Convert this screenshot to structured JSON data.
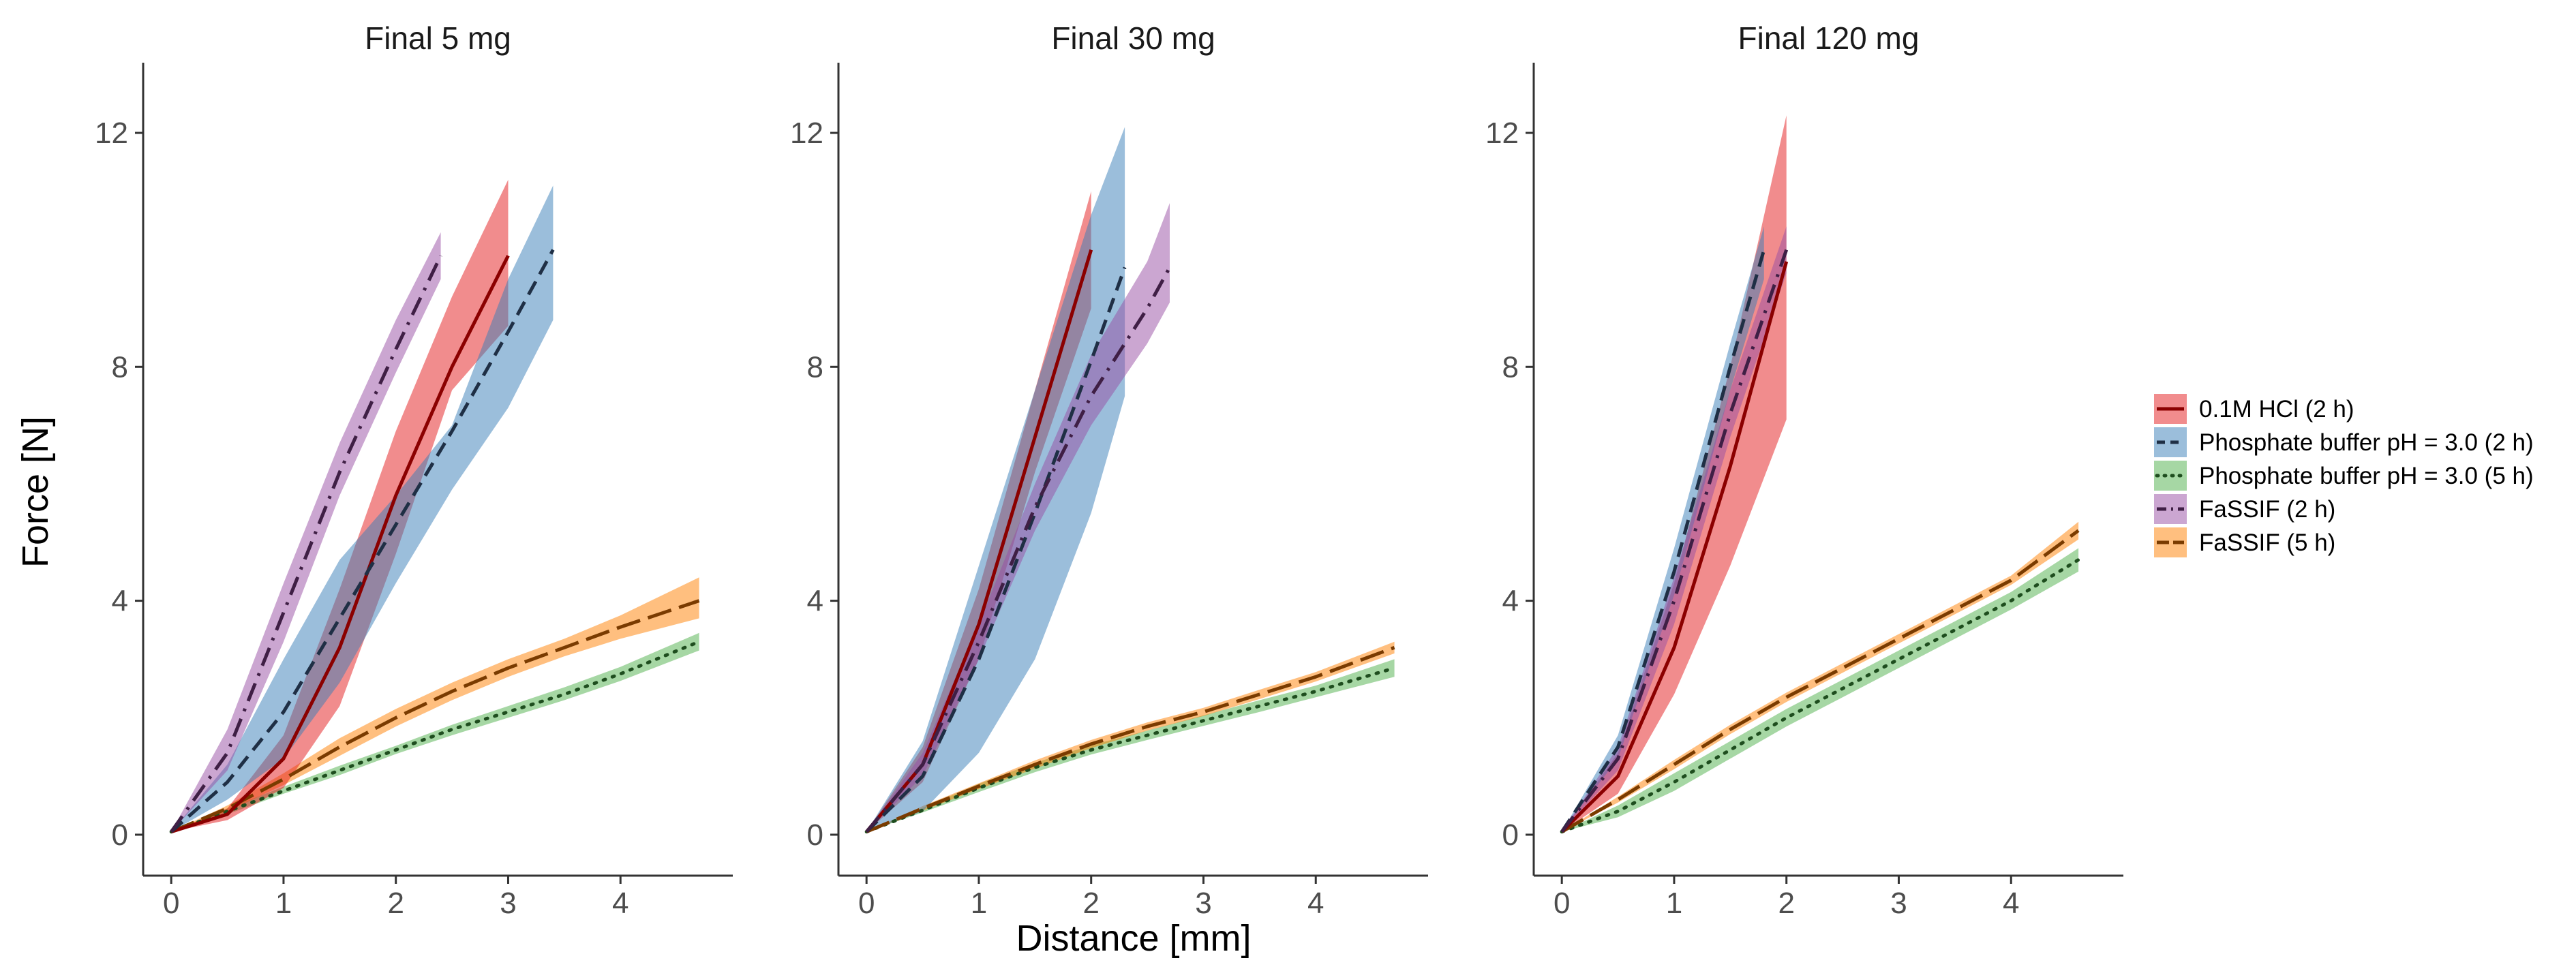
{
  "chart_data": {
    "type": "line",
    "xlabel": "Distance [mm]",
    "ylabel": "Force [N]",
    "xlim": [
      -0.25,
      5.0
    ],
    "ylim": [
      -0.7,
      13.2
    ],
    "xticks": [
      0,
      1,
      2,
      3,
      4
    ],
    "yticks": [
      0,
      4,
      8,
      12
    ],
    "grid": false,
    "legend_position": "right",
    "legend": [
      {
        "key": "hcl2",
        "label": "0.1M HCl (2 h)",
        "color": "#E41A1C",
        "line": "#8B0000",
        "dash": "solid"
      },
      {
        "key": "pb2",
        "label": "Phosphate buffer pH = 3.0 (2 h)",
        "color": "#377EB8",
        "line": "#1F2F45",
        "dash": "dashed"
      },
      {
        "key": "pb5",
        "label": "Phosphate buffer pH = 3.0 (5 h)",
        "color": "#4DAF4A",
        "line": "#1E4D1E",
        "dash": "dotted"
      },
      {
        "key": "fa2",
        "label": "FaSSIF (2 h)",
        "color": "#984EA3",
        "line": "#3F1F45",
        "dash": "dotdash"
      },
      {
        "key": "fa5",
        "label": "FaSSIF (5 h)",
        "color": "#FF7F00",
        "line": "#7A3B00",
        "dash": "longdash"
      }
    ],
    "panels": [
      {
        "title": "Final 5 mg",
        "series": {
          "hcl2": {
            "x": [
              0,
              0.5,
              1,
              1.5,
              2,
              2.5,
              3
            ],
            "y": [
              0.05,
              0.35,
              1.3,
              3.2,
              5.8,
              8.0,
              9.9
            ],
            "lower": [
              0.05,
              0.25,
              0.8,
              2.2,
              4.8,
              7.6,
              8.7
            ],
            "upper": [
              0.05,
              0.45,
              1.7,
              4.2,
              6.9,
              9.2,
              11.2
            ]
          },
          "pb2": {
            "x": [
              0,
              0.5,
              1,
              1.5,
              2,
              2.5,
              3,
              3.4
            ],
            "y": [
              0.05,
              0.9,
              2.1,
              3.7,
              5.3,
              6.9,
              8.6,
              10.0
            ],
            "lower": [
              0.05,
              0.6,
              1.3,
              2.6,
              4.3,
              5.9,
              7.3,
              8.8
            ],
            "upper": [
              0.05,
              1.2,
              3.0,
              4.7,
              5.8,
              7.0,
              9.5,
              11.1
            ]
          },
          "fa2": {
            "x": [
              0,
              0.5,
              1,
              1.5,
              2,
              2.4
            ],
            "y": [
              0.05,
              1.4,
              3.8,
              6.2,
              8.3,
              9.9
            ],
            "lower": [
              0.05,
              1.1,
              3.3,
              5.8,
              7.9,
              9.5
            ],
            "upper": [
              0.05,
              1.8,
              4.3,
              6.7,
              8.8,
              10.3
            ]
          },
          "pb5": {
            "x": [
              0,
              0.5,
              1,
              1.5,
              2,
              2.5,
              3,
              3.5,
              4,
              4.7
            ],
            "y": [
              0.05,
              0.4,
              0.75,
              1.1,
              1.45,
              1.8,
              2.1,
              2.4,
              2.75,
              3.3
            ],
            "lower": [
              0.05,
              0.35,
              0.7,
              1.02,
              1.38,
              1.7,
              2.0,
              2.3,
              2.63,
              3.15
            ],
            "upper": [
              0.05,
              0.45,
              0.82,
              1.18,
              1.52,
              1.88,
              2.2,
              2.52,
              2.87,
              3.45
            ]
          },
          "fa5": {
            "x": [
              0,
              0.5,
              1,
              1.5,
              2,
              2.5,
              3,
              3.5,
              4,
              4.7
            ],
            "y": [
              0.05,
              0.45,
              0.95,
              1.5,
              2.0,
              2.45,
              2.85,
              3.2,
              3.55,
              4.0
            ],
            "lower": [
              0.05,
              0.4,
              0.85,
              1.35,
              1.85,
              2.3,
              2.7,
              3.05,
              3.35,
              3.7
            ],
            "upper": [
              0.05,
              0.5,
              1.05,
              1.65,
              2.15,
              2.6,
              3.0,
              3.35,
              3.75,
              4.4
            ]
          }
        }
      },
      {
        "title": "Final 30 mg",
        "series": {
          "hcl2": {
            "x": [
              0,
              0.5,
              1,
              1.5,
              2
            ],
            "y": [
              0.05,
              1.2,
              3.6,
              6.8,
              10.0
            ],
            "lower": [
              0.05,
              0.9,
              3.0,
              6.2,
              9.0
            ],
            "upper": [
              0.05,
              1.5,
              4.2,
              7.6,
              11.0
            ]
          },
          "pb2": {
            "x": [
              0,
              0.5,
              1,
              1.5,
              2,
              2.3
            ],
            "y": [
              0.05,
              1.0,
              3.0,
              5.5,
              8.1,
              9.7
            ],
            "lower": [
              0.05,
              0.4,
              1.4,
              3.0,
              5.5,
              7.5
            ],
            "upper": [
              0.05,
              1.6,
              4.6,
              7.6,
              10.6,
              12.1
            ]
          },
          "fa2": {
            "x": [
              0,
              0.5,
              1,
              1.5,
              2,
              2.5,
              2.7
            ],
            "y": [
              0.05,
              1.2,
              3.3,
              5.6,
              7.5,
              9.0,
              9.7
            ],
            "lower": [
              0.05,
              1.0,
              3.0,
              5.2,
              7.0,
              8.4,
              9.1
            ],
            "upper": [
              0.05,
              1.4,
              3.6,
              6.0,
              8.2,
              9.8,
              10.8
            ]
          },
          "pb5": {
            "x": [
              0,
              0.5,
              1,
              1.5,
              2,
              2.5,
              3,
              3.5,
              4,
              4.7
            ],
            "y": [
              0.05,
              0.42,
              0.8,
              1.15,
              1.45,
              1.7,
              1.95,
              2.2,
              2.45,
              2.85
            ],
            "lower": [
              0.05,
              0.38,
              0.73,
              1.07,
              1.37,
              1.62,
              1.86,
              2.1,
              2.35,
              2.7
            ],
            "upper": [
              0.05,
              0.46,
              0.87,
              1.23,
              1.53,
              1.78,
              2.04,
              2.3,
              2.55,
              3.0
            ]
          },
          "fa5": {
            "x": [
              0,
              0.5,
              1,
              1.5,
              2,
              2.5,
              3,
              3.5,
              4,
              4.7
            ],
            "y": [
              0.05,
              0.45,
              0.83,
              1.2,
              1.55,
              1.85,
              2.1,
              2.4,
              2.7,
              3.2
            ],
            "lower": [
              0.05,
              0.41,
              0.78,
              1.13,
              1.48,
              1.78,
              2.03,
              2.32,
              2.62,
              3.1
            ],
            "upper": [
              0.05,
              0.49,
              0.88,
              1.27,
              1.62,
              1.92,
              2.17,
              2.48,
              2.78,
              3.3
            ]
          }
        }
      },
      {
        "title": "Final 120 mg",
        "series": {
          "hcl2": {
            "x": [
              0,
              0.5,
              1,
              1.5,
              2
            ],
            "y": [
              0.05,
              1.0,
              3.2,
              6.3,
              9.8
            ],
            "lower": [
              0.05,
              0.7,
              2.4,
              4.6,
              7.1
            ],
            "upper": [
              0.05,
              1.4,
              4.3,
              8.0,
              12.3
            ]
          },
          "pb2": {
            "x": [
              0,
              0.5,
              1,
              1.5,
              1.8
            ],
            "y": [
              0.05,
              1.5,
              4.5,
              8.0,
              10.0
            ],
            "lower": [
              0.05,
              1.3,
              4.1,
              7.6,
              9.5
            ],
            "upper": [
              0.05,
              1.7,
              4.9,
              8.4,
              10.4
            ]
          },
          "fa2": {
            "x": [
              0,
              0.5,
              1,
              1.5,
              2
            ],
            "y": [
              0.05,
              1.3,
              4.0,
              7.2,
              10.0
            ],
            "lower": [
              0.05,
              1.1,
              3.6,
              6.8,
              9.6
            ],
            "upper": [
              0.05,
              1.5,
              4.4,
              7.6,
              10.4
            ]
          },
          "pb5": {
            "x": [
              0,
              0.5,
              1,
              1.5,
              2,
              2.5,
              3,
              3.5,
              4,
              4.6
            ],
            "y": [
              0.05,
              0.4,
              0.9,
              1.45,
              2.0,
              2.5,
              3.0,
              3.5,
              4.0,
              4.7
            ],
            "lower": [
              0.05,
              0.3,
              0.75,
              1.3,
              1.85,
              2.35,
              2.85,
              3.35,
              3.85,
              4.5
            ],
            "upper": [
              0.05,
              0.5,
              1.05,
              1.6,
              2.15,
              2.65,
              3.15,
              3.65,
              4.15,
              4.9
            ]
          },
          "fa5": {
            "x": [
              0,
              0.5,
              1,
              1.5,
              2,
              2.5,
              3,
              3.5,
              4,
              4.6
            ],
            "y": [
              0.05,
              0.6,
              1.2,
              1.8,
              2.35,
              2.85,
              3.35,
              3.85,
              4.35,
              5.2
            ],
            "lower": [
              0.05,
              0.55,
              1.12,
              1.72,
              2.27,
              2.77,
              3.27,
              3.77,
              4.27,
              5.05
            ],
            "upper": [
              0.05,
              0.65,
              1.28,
              1.88,
              2.43,
              2.93,
              3.43,
              3.93,
              4.43,
              5.35
            ]
          }
        }
      }
    ]
  }
}
